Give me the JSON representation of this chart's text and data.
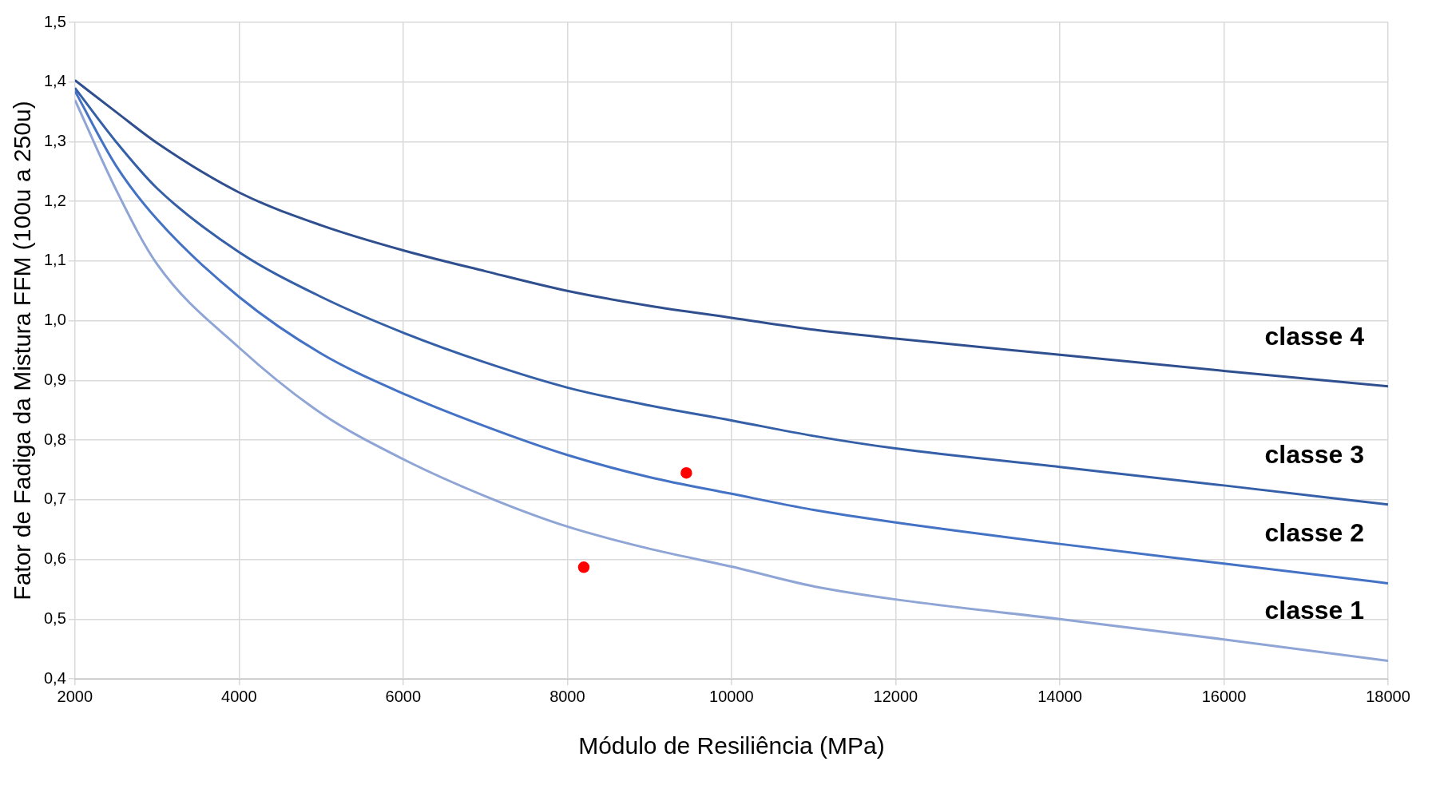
{
  "chart_data": {
    "type": "line",
    "xlabel": "Módulo de Resiliência (MPa)",
    "ylabel": "Fator de Fadiga da Mistura FFM (100u a 250u)",
    "xlim": [
      2000,
      18000
    ],
    "xticks": [
      2000,
      4000,
      6000,
      8000,
      10000,
      12000,
      14000,
      16000,
      18000
    ],
    "ylim": [
      0.4,
      1.5
    ],
    "yticks": [
      {
        "value": 0.4,
        "label": "0,4"
      },
      {
        "value": 0.5,
        "label": "0,5"
      },
      {
        "value": 0.6,
        "label": "0,6"
      },
      {
        "value": 0.7,
        "label": "0,7"
      },
      {
        "value": 0.8,
        "label": "0,8"
      },
      {
        "value": 0.9,
        "label": "0,9"
      },
      {
        "value": 1.0,
        "label": "1,0"
      },
      {
        "value": 1.1,
        "label": "1,1"
      },
      {
        "value": 1.2,
        "label": "1,2"
      },
      {
        "value": 1.3,
        "label": "1,3"
      },
      {
        "value": 1.4,
        "label": "1,4"
      },
      {
        "value": 1.5,
        "label": "1,5"
      }
    ],
    "grid": true,
    "legend": false,
    "marker": "none",
    "x": [
      2000,
      2500,
      3000,
      4000,
      5000,
      6000,
      7000,
      8000,
      9000,
      10000,
      11000,
      12000,
      14000,
      16000,
      18000
    ],
    "series": [
      {
        "name": "classe 4",
        "color": "#2f4f8f",
        "values": [
          1.403,
          1.35,
          1.298,
          1.215,
          1.16,
          1.118,
          1.083,
          1.05,
          1.025,
          1.005,
          0.985,
          0.97,
          0.943,
          0.916,
          0.89
        ]
      },
      {
        "name": "classe 3",
        "color": "#3560a8",
        "values": [
          1.39,
          1.3,
          1.222,
          1.115,
          1.04,
          0.98,
          0.93,
          0.888,
          0.858,
          0.833,
          0.807,
          0.786,
          0.755,
          0.724,
          0.692
        ]
      },
      {
        "name": "classe 2",
        "color": "#4472c4",
        "values": [
          1.385,
          1.26,
          1.17,
          1.04,
          0.945,
          0.878,
          0.823,
          0.775,
          0.738,
          0.71,
          0.683,
          0.662,
          0.626,
          0.593,
          0.56
        ]
      },
      {
        "name": "classe 1",
        "color": "#8fa5d6",
        "values": [
          1.37,
          1.22,
          1.095,
          0.955,
          0.845,
          0.768,
          0.706,
          0.655,
          0.618,
          0.588,
          0.555,
          0.533,
          0.5,
          0.466,
          0.43
        ]
      },
      {
        "type": "scatter",
        "color": "#ff0000",
        "marker": "circle",
        "x": [
          8200,
          9450
        ],
        "values": [
          0.587,
          0.745
        ]
      }
    ]
  }
}
